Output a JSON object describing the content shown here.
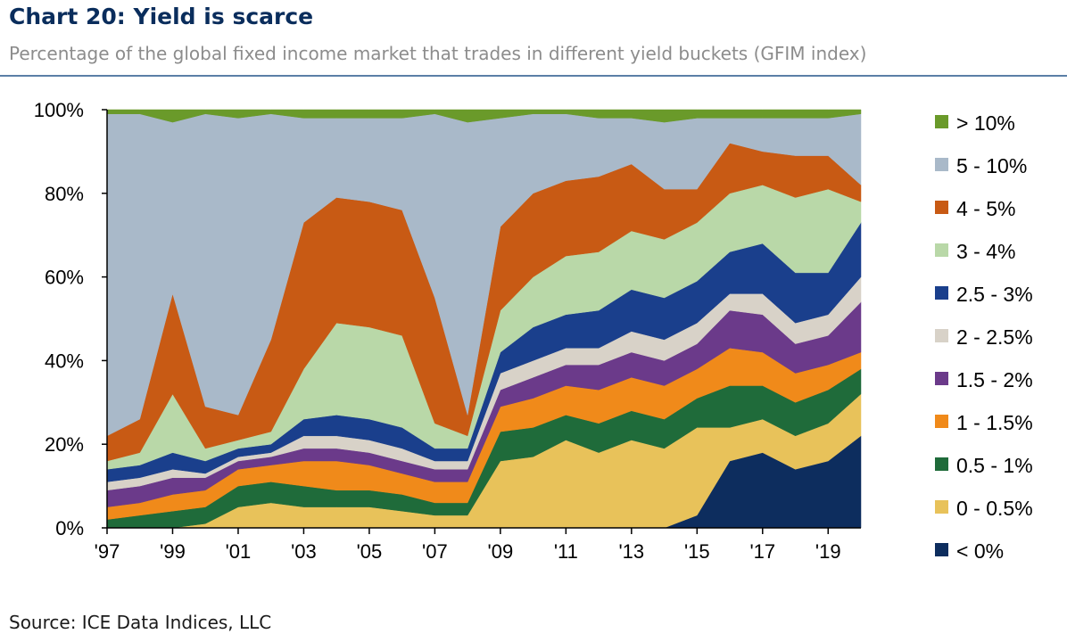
{
  "title": "Chart 20: Yield is scarce",
  "subtitle": "Percentage of the global fixed income market that trades in different yield buckets (GFIM index)",
  "source": "Source: ICE Data Indices, LLC",
  "chart_data": {
    "type": "area",
    "stacked": true,
    "x_ticks": [
      "'97",
      "'99",
      "'01",
      "'03",
      "'05",
      "'07",
      "'09",
      "'11",
      "'13",
      "'15",
      "'17",
      "'19"
    ],
    "y_ticks": [
      "0%",
      "20%",
      "40%",
      "60%",
      "80%",
      "100%"
    ],
    "ylim": [
      0,
      100
    ],
    "xlim": [
      1997,
      2020
    ],
    "legend_position": "right",
    "x": [
      1997,
      1998,
      1999,
      2000,
      2001,
      2002,
      2003,
      2004,
      2005,
      2006,
      2007,
      2008,
      2009,
      2010,
      2011,
      2012,
      2013,
      2014,
      2015,
      2016,
      2017,
      2018,
      2019,
      2020
    ],
    "series": [
      {
        "name": "< 0%",
        "color": "#0d2d5e",
        "values": [
          0,
          0,
          0,
          0,
          0,
          0,
          0,
          0,
          0,
          0,
          0,
          0,
          0,
          0,
          0,
          0,
          0,
          0,
          3,
          16,
          18,
          14,
          16,
          22
        ]
      },
      {
        "name": "0 - 0.5%",
        "color": "#e8c25a",
        "values": [
          0,
          0,
          0,
          1,
          5,
          6,
          5,
          5,
          5,
          4,
          3,
          3,
          16,
          17,
          21,
          18,
          21,
          19,
          21,
          8,
          8,
          8,
          9,
          10
        ]
      },
      {
        "name": "0.5 - 1%",
        "color": "#1f6b3a",
        "values": [
          2,
          3,
          4,
          4,
          5,
          5,
          5,
          4,
          4,
          4,
          3,
          3,
          7,
          7,
          6,
          7,
          7,
          7,
          7,
          10,
          8,
          8,
          8,
          6
        ]
      },
      {
        "name": "1 - 1.5%",
        "color": "#f08a1a",
        "values": [
          3,
          3,
          4,
          4,
          4,
          4,
          6,
          7,
          6,
          5,
          5,
          5,
          6,
          7,
          7,
          8,
          8,
          8,
          7,
          9,
          8,
          7,
          6,
          4
        ]
      },
      {
        "name": "1.5 - 2%",
        "color": "#6b3a8a",
        "values": [
          4,
          4,
          4,
          3,
          2,
          2,
          3,
          3,
          3,
          3,
          3,
          3,
          4,
          5,
          5,
          6,
          6,
          6,
          6,
          9,
          9,
          7,
          7,
          12
        ]
      },
      {
        "name": "2 - 2.5%",
        "color": "#d8d2c8",
        "values": [
          2,
          2,
          2,
          1,
          1,
          1,
          3,
          3,
          3,
          3,
          2,
          2,
          4,
          4,
          4,
          4,
          5,
          5,
          5,
          4,
          5,
          5,
          5,
          6
        ]
      },
      {
        "name": "2.5 - 3%",
        "color": "#1a3f8c",
        "values": [
          3,
          3,
          4,
          3,
          2,
          2,
          4,
          5,
          5,
          5,
          3,
          3,
          5,
          8,
          8,
          9,
          10,
          10,
          10,
          10,
          12,
          12,
          10,
          13
        ]
      },
      {
        "name": "3 - 4%",
        "color": "#b9d8a8",
        "values": [
          2,
          3,
          14,
          3,
          2,
          3,
          12,
          22,
          22,
          22,
          6,
          3,
          10,
          12,
          14,
          14,
          14,
          14,
          14,
          14,
          14,
          18,
          20,
          5
        ]
      },
      {
        "name": "4 - 5%",
        "color": "#c85a14",
        "values": [
          6,
          8,
          24,
          10,
          6,
          22,
          35,
          30,
          30,
          30,
          30,
          5,
          20,
          20,
          18,
          18,
          16,
          12,
          8,
          12,
          8,
          10,
          8,
          4
        ]
      },
      {
        "name": "5 - 10%",
        "color": "#a9b9c9",
        "values": [
          77,
          73,
          41,
          70,
          71,
          54,
          25,
          19,
          20,
          22,
          44,
          70,
          26,
          19,
          16,
          14,
          11,
          16,
          17,
          6,
          8,
          9,
          9,
          17
        ]
      },
      {
        "name": "> 10%",
        "color": "#6a9a2a",
        "values": [
          1,
          1,
          3,
          1,
          2,
          1,
          2,
          2,
          2,
          2,
          1,
          3,
          2,
          1,
          1,
          2,
          2,
          3,
          2,
          2,
          2,
          2,
          2,
          1
        ]
      }
    ],
    "legend_order": [
      "> 10%",
      "5 - 10%",
      "4 - 5%",
      "3 - 4%",
      "2.5 - 3%",
      "2 - 2.5%",
      "1.5 - 2%",
      "1 - 1.5%",
      "0.5 - 1%",
      "0 - 0.5%",
      "< 0%"
    ]
  }
}
